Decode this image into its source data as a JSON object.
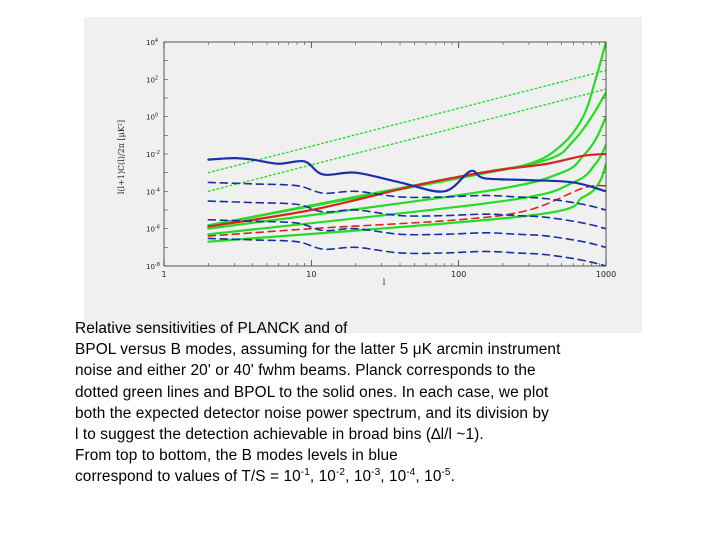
{
  "chart_data": {
    "type": "line",
    "xlabel": "l",
    "ylabel": "l(l+1)C(l)/2π [μK²]",
    "x_scale": "log",
    "y_scale": "log",
    "xlim": [
      1,
      1000
    ],
    "ylim": [
      1e-08,
      10000
    ],
    "x_ticks": [
      {
        "value": 1,
        "label": "1"
      },
      {
        "value": 10,
        "label": "10"
      },
      {
        "value": 100,
        "label": "100"
      },
      {
        "value": 1000,
        "label": "1000"
      }
    ],
    "y_ticks": [
      {
        "value": 1e-08,
        "label": "10",
        "exp": "-8"
      },
      {
        "value": 1e-06,
        "label": "10",
        "exp": "-6"
      },
      {
        "value": 0.0001,
        "label": "10",
        "exp": "-4"
      },
      {
        "value": 0.01,
        "label": "10",
        "exp": "-2"
      },
      {
        "value": 1,
        "label": "10",
        "exp": "0"
      },
      {
        "value": 100,
        "label": "10",
        "exp": "2"
      },
      {
        "value": 10000,
        "label": "10",
        "exp": "4"
      }
    ],
    "series": [
      {
        "color": "#22dd22",
        "style": "dotted",
        "x": [
          2,
          1000
        ],
        "y": [
          0.001,
          300
        ]
      },
      {
        "color": "#22dd22",
        "style": "dotted",
        "x": [
          2,
          1000
        ],
        "y": [
          0.0001,
          30
        ]
      },
      {
        "color": "#22dd22",
        "style": "solid",
        "x": [
          2,
          100,
          300,
          500,
          700,
          850,
          1000
        ],
        "y": [
          1.5e-06,
          0.0006,
          0.003,
          0.03,
          1,
          100,
          10000
        ]
      },
      {
        "color": "#22dd22",
        "style": "solid",
        "x": [
          2,
          100,
          400,
          600,
          800,
          1000
        ],
        "y": [
          1.5e-06,
          0.0005,
          0.005,
          0.05,
          1,
          20
        ]
      },
      {
        "color": "#22dd22",
        "style": "solid",
        "x": [
          2,
          150,
          500,
          700,
          850,
          1000
        ],
        "y": [
          1e-06,
          0.0001,
          0.001,
          0.008,
          0.06,
          1
        ]
      },
      {
        "color": "#22dd22",
        "style": "solid",
        "x": [
          2,
          200,
          600,
          850,
          1000
        ],
        "y": [
          5e-07,
          3e-05,
          0.0003,
          0.003,
          0.03
        ]
      },
      {
        "color": "#22dd22",
        "style": "solid",
        "x": [
          2,
          300,
          700,
          900,
          1000
        ],
        "y": [
          2e-07,
          5e-06,
          5e-05,
          0.0003,
          0.003
        ]
      },
      {
        "color": "#dd2222",
        "style": "solid",
        "x": [
          2,
          10,
          50,
          100,
          200,
          400,
          700,
          1000
        ],
        "y": [
          1.3e-06,
          1e-05,
          0.0002,
          0.0006,
          0.0015,
          0.003,
          0.008,
          0.01
        ]
      },
      {
        "color": "#dd2222",
        "style": "dashed",
        "x": [
          2,
          10,
          100,
          300,
          700,
          1000
        ],
        "y": [
          4e-07,
          1e-06,
          3e-06,
          1e-05,
          0.00015,
          0.0002
        ]
      },
      {
        "color": "#1a2fa8",
        "style": "solid",
        "x": [
          2,
          3,
          4,
          6,
          9,
          12,
          20,
          40,
          80,
          120,
          150,
          300,
          600,
          1000
        ],
        "y": [
          0.005,
          0.006,
          0.005,
          0.003,
          0.004,
          0.0008,
          0.001,
          0.0003,
          0.0001,
          0.0012,
          0.0005,
          0.0004,
          0.0003,
          0.0001
        ]
      },
      {
        "color": "#1a2fa8",
        "style": "dashed",
        "x": [
          2,
          4,
          8,
          12,
          20,
          40,
          80,
          150,
          250,
          400,
          700,
          1000
        ],
        "y": [
          0.0003,
          0.00025,
          0.0002,
          8e-05,
          0.0001,
          5e-05,
          5e-05,
          6e-05,
          5e-05,
          4e-05,
          2e-05,
          1e-05
        ]
      },
      {
        "color": "#1a2fa8",
        "style": "dashed",
        "x": [
          2,
          4,
          8,
          12,
          20,
          40,
          80,
          150,
          250,
          400,
          700,
          1000
        ],
        "y": [
          3e-05,
          2.5e-05,
          2e-05,
          8e-06,
          1e-05,
          5e-06,
          5e-06,
          6e-06,
          5e-06,
          4e-06,
          2e-06,
          1e-06
        ]
      },
      {
        "color": "#1a2fa8",
        "style": "dashed",
        "x": [
          2,
          4,
          8,
          12,
          20,
          40,
          80,
          150,
          250,
          400,
          700,
          1000
        ],
        "y": [
          3e-06,
          2.5e-06,
          2e-06,
          8e-07,
          1e-06,
          5e-07,
          5e-07,
          6e-07,
          5e-07,
          4e-07,
          2e-07,
          1e-07
        ]
      },
      {
        "color": "#1a2fa8",
        "style": "dashed",
        "x": [
          2,
          4,
          8,
          12,
          20,
          40,
          80,
          150,
          250,
          400,
          700,
          1000
        ],
        "y": [
          3e-07,
          2.5e-07,
          2e-07,
          8e-08,
          1e-07,
          5e-08,
          5e-08,
          6e-08,
          5e-08,
          4e-08,
          2e-08,
          1e-08
        ]
      }
    ]
  },
  "caption": {
    "line1": "Relative sensitivities of PLANCK and of",
    "line2_a": "BPOL versus B modes, assuming for the latter 5 ",
    "line2_mu": "μ",
    "line2_b": "K arcmin instrument",
    "line3": "noise and either 20' or 40' fwhm beams. Planck corresponds to the",
    "line4": "dotted green lines and BPOL to the solid ones. In each case, we plot",
    "line5": "both the expected detector noise power spectrum, and its division by",
    "line6": "l to suggest the detection achievable in broad bins (∆l/l ~1).",
    "line7": "From top to bottom, the B modes levels in blue",
    "line8_a": "correspond to values of T/S = 10",
    "exp1": "-1",
    "sep1": ", 10",
    "exp2": "-2",
    "sep2": ", 10",
    "exp3": "-3",
    "sep3": ", 10",
    "exp4": "-4",
    "sep4": ", 10",
    "exp5": "-5",
    "end": "."
  }
}
